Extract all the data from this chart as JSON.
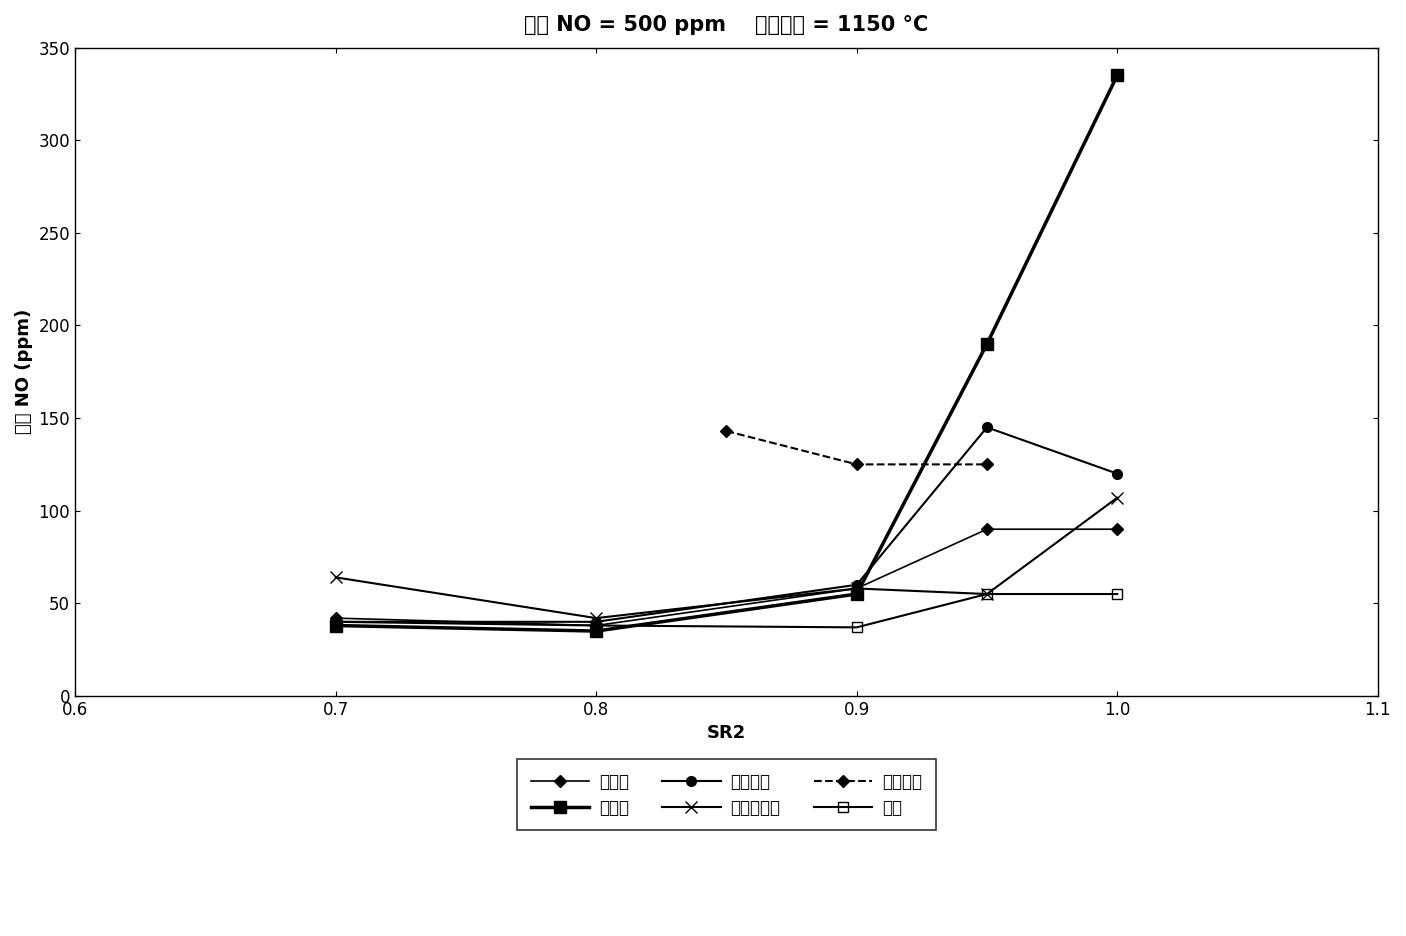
{
  "title": "进口 NO = 500 ppm    炉膛温度 = 1150 °C",
  "xlabel": "SR2",
  "ylabel": "出口 NO (ppm)",
  "xlim": [
    0.6,
    1.1
  ],
  "ylim": [
    0,
    350
  ],
  "xticks": [
    0.6,
    0.7,
    0.8,
    0.9,
    1.0,
    1.1
  ],
  "yticks": [
    0,
    50,
    100,
    150,
    200,
    250,
    300,
    350
  ],
  "series": [
    {
      "label": "废轮胎",
      "x": [
        0.7,
        0.8,
        0.9,
        0.95,
        1.0
      ],
      "y": [
        42,
        38,
        58,
        90,
        90
      ],
      "color": "black",
      "marker": "D",
      "markersize": 6,
      "linestyle": "-",
      "linewidth": 1.2,
      "fillstyle": "full"
    },
    {
      "label": "松树皮",
      "x": [
        0.7,
        0.8,
        0.9,
        0.95,
        1.0
      ],
      "y": [
        38,
        35,
        55,
        190,
        335
      ],
      "color": "black",
      "marker": "s",
      "markersize": 8,
      "linestyle": "-",
      "linewidth": 2.5,
      "fillstyle": "full"
    },
    {
      "label": "谷物秸秆",
      "x": [
        0.7,
        0.8,
        0.9,
        0.95,
        1.0
      ],
      "y": [
        40,
        40,
        60,
        145,
        120
      ],
      "color": "black",
      "marker": "o",
      "markersize": 7,
      "linestyle": "-",
      "linewidth": 1.5,
      "fillstyle": "full"
    },
    {
      "label": "造纸厂污泥",
      "x": [
        0.7,
        0.8,
        0.9,
        0.95,
        1.0
      ],
      "y": [
        64,
        42,
        58,
        55,
        107
      ],
      "color": "black",
      "marker": "x",
      "markersize": 9,
      "linestyle": "-",
      "linewidth": 1.5,
      "fillstyle": "full"
    },
    {
      "label": "松木锯末",
      "x": [
        0.85,
        0.9,
        0.95
      ],
      "y": [
        143,
        125,
        125
      ],
      "color": "black",
      "marker": "D",
      "markersize": 6,
      "linestyle": "--",
      "linewidth": 1.5,
      "fillstyle": "full"
    },
    {
      "label": "甲烷",
      "x": [
        0.7,
        0.8,
        0.9,
        0.95,
        1.0
      ],
      "y": [
        40,
        38,
        37,
        55,
        55
      ],
      "color": "black",
      "marker": "s",
      "markersize": 7,
      "linestyle": "-",
      "linewidth": 1.5,
      "fillstyle": "none"
    }
  ],
  "title_fontsize": 15,
  "axis_label_fontsize": 13,
  "tick_fontsize": 12,
  "legend_fontsize": 12
}
